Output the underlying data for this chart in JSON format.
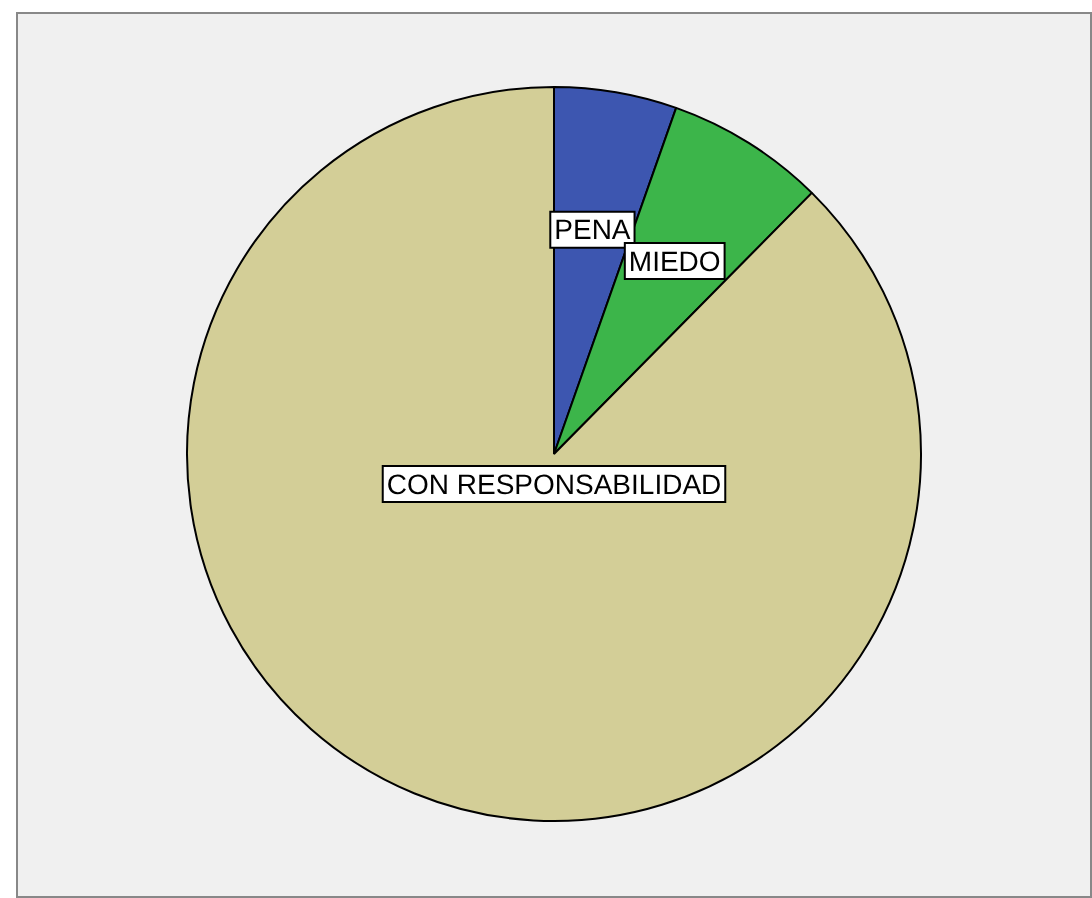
{
  "chart_data": {
    "type": "pie",
    "categories": [
      "PENA",
      "MIEDO",
      "CON RESPONSABILIDAD"
    ],
    "values": [
      5.4,
      7.0,
      87.6
    ],
    "colors": [
      "#3d56b0",
      "#3cb54a",
      "#d3ce97"
    ],
    "legend": false
  }
}
